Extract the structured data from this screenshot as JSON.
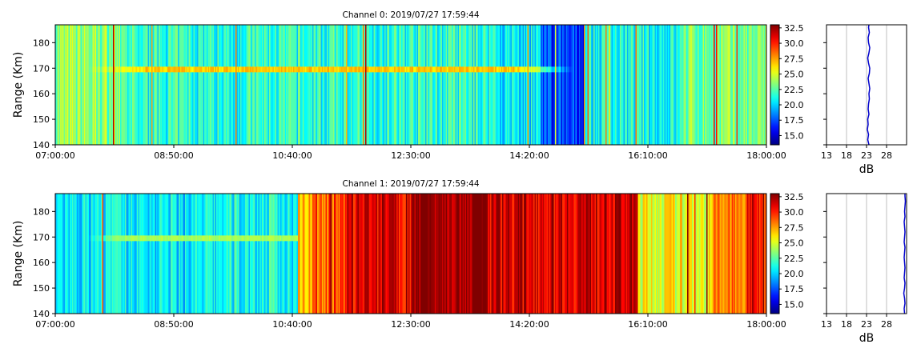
{
  "chart_data": [
    {
      "type": "heatmap",
      "title": "Channel 0: 2019/07/27 17:59:44",
      "ylabel": "Range (Km)",
      "xlabel": "",
      "x_ticks": [
        "07:00:00",
        "08:50:00",
        "10:40:00",
        "12:30:00",
        "14:20:00",
        "16:10:00",
        "18:00:00"
      ],
      "xlim": [
        "07:00:00",
        "18:00:00"
      ],
      "y_ticks": [
        140,
        150,
        160,
        170,
        180
      ],
      "ylim": [
        140,
        187
      ],
      "colorbar": {
        "colormap": "jet",
        "range": [
          13.5,
          33
        ],
        "ticks": [
          "15.0",
          "17.5",
          "20.0",
          "22.5",
          "25.0",
          "27.5",
          "30.0",
          "32.5"
        ]
      },
      "base_level_segments": [
        {
          "from": "07:00:00",
          "to": "08:00:00",
          "db": 23.5
        },
        {
          "from": "08:00:00",
          "to": "13:50:00",
          "db": 21.5
        },
        {
          "from": "13:50:00",
          "to": "14:30:00",
          "db": 20.5
        },
        {
          "from": "14:30:00",
          "to": "15:10:00",
          "db": 17.0
        },
        {
          "from": "15:10:00",
          "to": "16:40:00",
          "db": 21.0
        },
        {
          "from": "16:40:00",
          "to": "18:00:00",
          "db": 23.0
        }
      ],
      "echo_layer": {
        "range_km": 169.5,
        "from": "07:30:00",
        "to": "15:00:00",
        "peak_db": 27.5
      },
      "profile": {
        "title": "",
        "xlabel": "dB",
        "ylabel": "",
        "x_ticks": [
          13,
          18,
          23,
          28
        ],
        "xlim": [
          13,
          33
        ],
        "ylim": [
          140,
          187
        ],
        "grid": "vertical",
        "line_color": "#0000cc",
        "values": [
          [
            140,
            23.6
          ],
          [
            142,
            23.3
          ],
          [
            144,
            23.5
          ],
          [
            146,
            23.2
          ],
          [
            148,
            23.4
          ],
          [
            150,
            23.3
          ],
          [
            152,
            23.6
          ],
          [
            154,
            23.4
          ],
          [
            156,
            23.5
          ],
          [
            158,
            23.7
          ],
          [
            160,
            23.6
          ],
          [
            162,
            23.8
          ],
          [
            164,
            23.6
          ],
          [
            166,
            23.4
          ],
          [
            168,
            23.7
          ],
          [
            170,
            23.8
          ],
          [
            172,
            23.5
          ],
          [
            174,
            23.3
          ],
          [
            176,
            23.6
          ],
          [
            178,
            23.8
          ],
          [
            180,
            23.5
          ],
          [
            182,
            23.4
          ],
          [
            184,
            23.7
          ],
          [
            186,
            23.5
          ],
          [
            187,
            23.6
          ]
        ]
      }
    },
    {
      "type": "heatmap",
      "title": "Channel 1: 2019/07/27 17:59:44",
      "ylabel": "Range (Km)",
      "xlabel": "",
      "x_ticks": [
        "07:00:00",
        "08:50:00",
        "10:40:00",
        "12:30:00",
        "14:20:00",
        "16:10:00",
        "18:00:00"
      ],
      "xlim": [
        "07:00:00",
        "18:00:00"
      ],
      "y_ticks": [
        140,
        150,
        160,
        170,
        180
      ],
      "ylim": [
        140,
        187
      ],
      "colorbar": {
        "colormap": "jet",
        "range": [
          13.5,
          33
        ],
        "ticks": [
          "15.0",
          "17.5",
          "20.0",
          "22.5",
          "25.0",
          "27.5",
          "30.0",
          "32.5"
        ]
      },
      "base_level_segments": [
        {
          "from": "07:00:00",
          "to": "09:30:00",
          "db": 20.5
        },
        {
          "from": "09:30:00",
          "to": "10:45:00",
          "db": 21.0
        },
        {
          "from": "10:45:00",
          "to": "11:00:00",
          "db": 27.5
        },
        {
          "from": "11:00:00",
          "to": "11:30:00",
          "db": 29.0
        },
        {
          "from": "11:30:00",
          "to": "12:30:00",
          "db": 31.0
        },
        {
          "from": "12:30:00",
          "to": "13:40:00",
          "db": 33.0
        },
        {
          "from": "13:40:00",
          "to": "15:00:00",
          "db": 31.5
        },
        {
          "from": "15:00:00",
          "to": "16:00:00",
          "db": 31.5
        },
        {
          "from": "16:00:00",
          "to": "17:10:00",
          "db": 25.5
        },
        {
          "from": "17:10:00",
          "to": "17:40:00",
          "db": 28.0
        },
        {
          "from": "17:40:00",
          "to": "18:00:00",
          "db": 30.5
        }
      ],
      "echo_layer": {
        "range_km": 169.5,
        "from": "07:30:00",
        "to": "12:30:00",
        "peak_db": 24.5
      },
      "profile": {
        "title": "",
        "xlabel": "dB",
        "ylabel": "",
        "x_ticks": [
          13,
          18,
          23,
          28
        ],
        "xlim": [
          13,
          33
        ],
        "ylim": [
          140,
          187
        ],
        "grid": "vertical",
        "line_color": "#0000cc",
        "values": [
          [
            140,
            32.5
          ],
          [
            142,
            32.4
          ],
          [
            144,
            32.6
          ],
          [
            146,
            32.5
          ],
          [
            148,
            32.3
          ],
          [
            150,
            32.5
          ],
          [
            152,
            32.6
          ],
          [
            154,
            32.4
          ],
          [
            156,
            32.5
          ],
          [
            158,
            32.6
          ],
          [
            160,
            32.5
          ],
          [
            162,
            32.4
          ],
          [
            164,
            32.5
          ],
          [
            166,
            32.6
          ],
          [
            168,
            32.4
          ],
          [
            170,
            32.5
          ],
          [
            172,
            32.6
          ],
          [
            174,
            32.5
          ],
          [
            176,
            32.4
          ],
          [
            178,
            32.6
          ],
          [
            180,
            32.5
          ],
          [
            182,
            32.6
          ],
          [
            184,
            32.7
          ],
          [
            186,
            32.6
          ],
          [
            187,
            32.6
          ]
        ]
      }
    }
  ]
}
